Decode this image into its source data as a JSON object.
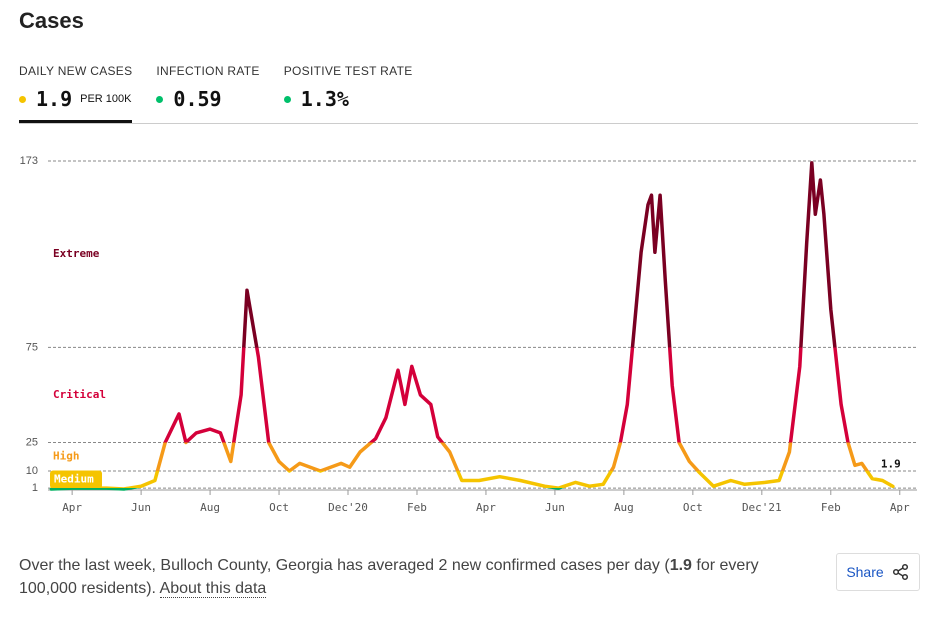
{
  "header": {
    "title": "Cases"
  },
  "tabs": [
    {
      "label": "DAILY NEW CASES",
      "value": "1.9",
      "unit": "PER 100K",
      "color": "#f5c400",
      "active": true
    },
    {
      "label": "INFECTION RATE",
      "value": "0.59",
      "color": "#00c06b",
      "active": false
    },
    {
      "label": "POSITIVE TEST RATE",
      "value": "1.3%",
      "color": "#00c06b",
      "active": false
    }
  ],
  "chart_data": {
    "type": "line",
    "xlim": [
      0.3,
      25.5
    ],
    "xticks": [
      {
        "value": 1,
        "label": "Apr"
      },
      {
        "value": 3,
        "label": "Jun"
      },
      {
        "value": 5,
        "label": "Aug"
      },
      {
        "value": 7,
        "label": "Oct"
      },
      {
        "value": 9,
        "label": "Dec'20"
      },
      {
        "value": 11,
        "label": "Feb"
      },
      {
        "value": 13,
        "label": "Apr"
      },
      {
        "value": 15,
        "label": "Jun"
      },
      {
        "value": 17,
        "label": "Aug"
      },
      {
        "value": 19,
        "label": "Oct"
      },
      {
        "value": 21,
        "label": "Dec'21"
      },
      {
        "value": 23,
        "label": "Feb"
      },
      {
        "value": 25,
        "label": "Apr"
      }
    ],
    "ylim": [
      0,
      173
    ],
    "yticks": [
      1,
      10,
      25,
      75,
      173
    ],
    "grid": true,
    "levels": [
      {
        "min": 0,
        "color": "#00b060"
      },
      {
        "name": "Medium",
        "min": 1,
        "color": "#f5c400"
      },
      {
        "name": "High",
        "min": 10,
        "color": "#f59a18"
      },
      {
        "name": "Critical",
        "min": 25,
        "color": "#d4003a"
      },
      {
        "name": "Extreme",
        "min": 75,
        "color": "#7a0022"
      }
    ],
    "series": [
      {
        "name": "Daily new cases per 100K",
        "x": [
          0.4,
          1,
          1.5,
          2,
          2.5,
          3,
          3.4,
          3.7,
          4.1,
          4.3,
          4.6,
          5.0,
          5.3,
          5.6,
          5.9,
          6.07,
          6.4,
          6.7,
          7.0,
          7.3,
          7.6,
          8.2,
          8.8,
          9.05,
          9.35,
          9.8,
          10.1,
          10.45,
          10.65,
          10.85,
          11.1,
          11.4,
          11.6,
          11.95,
          12.3,
          12.8,
          13.4,
          14.0,
          14.7,
          15.1,
          15.6,
          16.0,
          16.4,
          16.7,
          16.9,
          17.1,
          17.3,
          17.5,
          17.7,
          17.8,
          17.9,
          18.05,
          18.2,
          18.4,
          18.6,
          18.9,
          19.2,
          19.6,
          20.1,
          20.5,
          21.1,
          21.5,
          21.8,
          22.1,
          22.3,
          22.45,
          22.55,
          22.7,
          22.8,
          23.0,
          23.3,
          23.5,
          23.7,
          23.9,
          24.2,
          24.5,
          24.8
        ],
        "values": [
          0.5,
          1,
          1,
          1,
          0.5,
          2,
          5,
          25,
          40,
          25,
          30,
          32,
          30,
          15,
          50,
          105,
          70,
          25,
          15,
          10,
          14,
          10,
          14,
          12,
          20,
          27,
          38,
          63,
          45,
          65,
          50,
          45,
          28,
          20,
          5,
          5,
          7,
          5,
          2,
          1,
          4,
          2,
          3,
          12,
          25,
          45,
          85,
          125,
          150,
          155,
          125,
          155,
          110,
          55,
          25,
          15,
          9,
          2,
          5,
          3,
          4,
          5,
          20,
          65,
          130,
          172,
          145,
          163,
          145,
          95,
          45,
          25,
          13,
          14,
          6,
          5,
          1.9
        ]
      }
    ]
  },
  "footer": {
    "text_before": "Over the last week, Bulloch County, Georgia has averaged 2 new confirmed cases per day (",
    "bold": "1.9",
    "text_after": " for every 100,000 residents). ",
    "link": "About this data"
  },
  "share": {
    "label": "Share"
  }
}
